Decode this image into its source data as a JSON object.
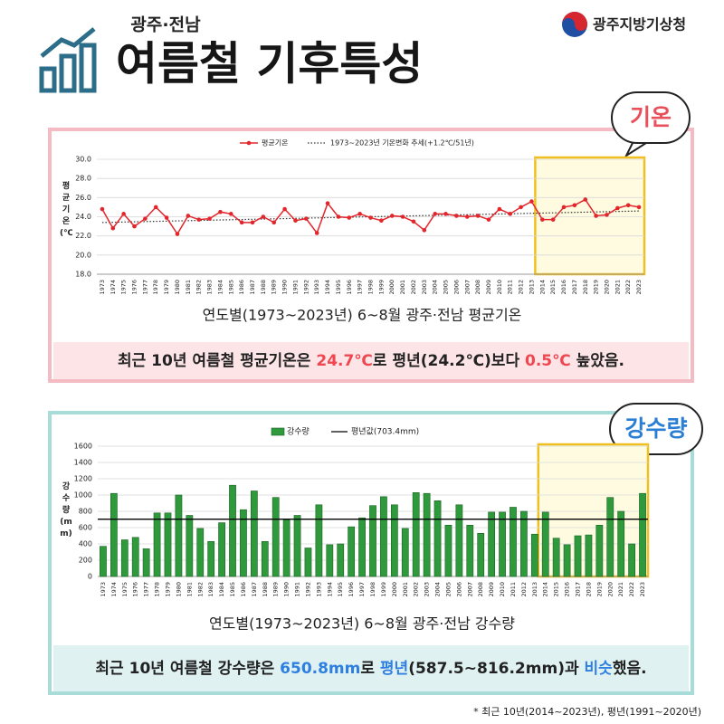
{
  "header": {
    "region": "광주·전남",
    "title": "여름철 기후특성",
    "agency": "광주지방기상청"
  },
  "panels": [
    {
      "badge": "기온",
      "caption": "연도별(1973~2023년) 6~8월 광주·전남 평균기온",
      "summary": [
        {
          "text": "최근 10년 여름철 평균기온은 "
        },
        {
          "text": "24.7℃",
          "color": "#f0464f"
        },
        {
          "text": "로 평년(24.2℃)보다 "
        },
        {
          "text": "0.5℃",
          "color": "#f0464f"
        },
        {
          "text": " 높았음."
        }
      ]
    },
    {
      "badge": "강수량",
      "caption": "연도별(1973~2023년) 6~8월 광주·전남 강수량",
      "summary": [
        {
          "text": "최근 10년 여름철 강수량은 "
        },
        {
          "text": "650.8mm",
          "color": "#2f7fe0"
        },
        {
          "text": "로 "
        },
        {
          "text": "평년",
          "color": "#2f7fe0"
        },
        {
          "text": "(587.5~816.2mm)과 "
        },
        {
          "text": "비슷",
          "color": "#2f7fe0"
        },
        {
          "text": "했음."
        }
      ]
    }
  ],
  "footnote": "* 최근 10년(2014~2023년), 평년(1991~2020년)",
  "chart_data": [
    {
      "type": "line",
      "categories": [
        "1973",
        "1974",
        "1975",
        "1976",
        "1977",
        "1978",
        "1979",
        "1980",
        "1981",
        "1982",
        "1983",
        "1984",
        "1985",
        "1986",
        "1987",
        "1988",
        "1989",
        "1990",
        "1991",
        "1992",
        "1993",
        "1994",
        "1995",
        "1996",
        "1997",
        "1998",
        "1999",
        "2000",
        "2001",
        "2002",
        "2003",
        "2004",
        "2005",
        "2006",
        "2007",
        "2008",
        "2009",
        "2010",
        "2011",
        "2012",
        "2013",
        "2014",
        "2015",
        "2016",
        "2017",
        "2018",
        "2019",
        "2020",
        "2021",
        "2022",
        "2023"
      ],
      "series": [
        {
          "name": "평균기온",
          "color": "#e3262c",
          "values": [
            24.8,
            22.8,
            24.3,
            23.0,
            23.8,
            25.0,
            23.9,
            22.2,
            24.1,
            23.7,
            23.8,
            24.5,
            24.3,
            23.4,
            23.4,
            24.0,
            23.4,
            24.8,
            23.6,
            23.8,
            22.3,
            25.4,
            24.0,
            23.9,
            24.3,
            23.9,
            23.6,
            24.1,
            24.0,
            23.5,
            22.6,
            24.3,
            24.3,
            24.1,
            24.0,
            24.1,
            23.7,
            24.8,
            24.3,
            25.0,
            25.6,
            23.7,
            23.7,
            25.0,
            25.2,
            25.8,
            24.1,
            24.2,
            24.9,
            25.2,
            25.0
          ]
        }
      ],
      "trend": {
        "name": "1973~2023년 기온변화 추세(+1.2℃/51년)",
        "color": "#333333",
        "values": [
          23.4,
          24.6
        ]
      },
      "ylabel": "평균기온(℃)",
      "ylim": [
        18,
        30
      ],
      "yticks": [
        {
          "value": 18,
          "label": "18.0"
        },
        {
          "value": 20,
          "label": "20.0"
        },
        {
          "value": 22,
          "label": "22.0"
        },
        {
          "value": 24,
          "label": "24.0"
        },
        {
          "value": 26,
          "label": "26.0"
        },
        {
          "value": 28,
          "label": "28.0"
        },
        {
          "value": 30,
          "label": "30.0"
        }
      ],
      "grid": true
    },
    {
      "type": "bar",
      "categories": [
        "1973",
        "1974",
        "1975",
        "1976",
        "1977",
        "1978",
        "1979",
        "1980",
        "1981",
        "1982",
        "1983",
        "1984",
        "1985",
        "1986",
        "1987",
        "1988",
        "1989",
        "1990",
        "1991",
        "1992",
        "1993",
        "1994",
        "1995",
        "1996",
        "1997",
        "1998",
        "1999",
        "2000",
        "2001",
        "2002",
        "2003",
        "2004",
        "2005",
        "2006",
        "2007",
        "2008",
        "2009",
        "2010",
        "2011",
        "2012",
        "2013",
        "2014",
        "2015",
        "2016",
        "2017",
        "2018",
        "2019",
        "2020",
        "2021",
        "2022",
        "2023"
      ],
      "series": [
        {
          "name": "강수량",
          "color": "#2f9a3c",
          "values": [
            370,
            1020,
            450,
            480,
            340,
            780,
            780,
            1000,
            750,
            590,
            430,
            660,
            1120,
            820,
            1050,
            430,
            970,
            700,
            750,
            350,
            880,
            390,
            400,
            610,
            720,
            870,
            980,
            880,
            590,
            1030,
            1020,
            930,
            630,
            880,
            630,
            530,
            790,
            790,
            850,
            800,
            520,
            790,
            470,
            390,
            500,
            510,
            630,
            970,
            800,
            400,
            1020
          ]
        }
      ],
      "reference": {
        "name": "평년값(703.4mm)",
        "value": 703.4,
        "color": "#000000"
      },
      "ylabel": "강수량(mm)",
      "ylim": [
        0,
        1600
      ],
      "yticks": [
        0,
        200,
        400,
        600,
        800,
        1000,
        1200,
        1400,
        1600
      ],
      "grid": true
    }
  ]
}
